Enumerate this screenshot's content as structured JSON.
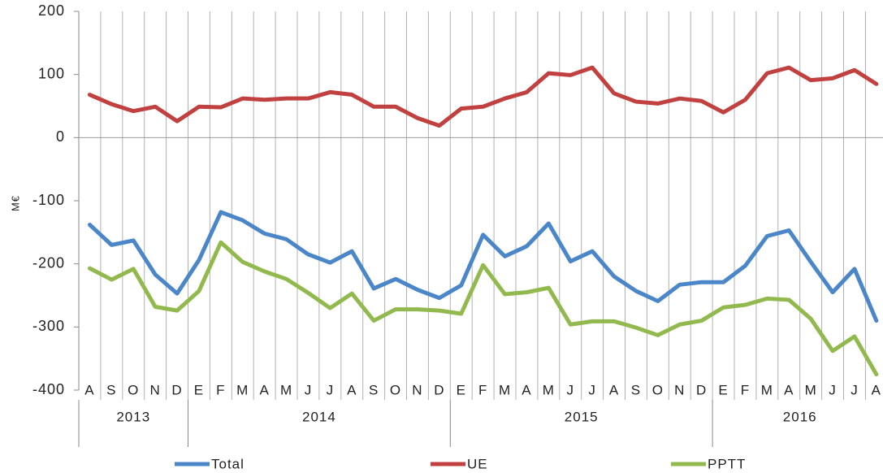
{
  "chart_data": {
    "type": "line",
    "y_label": "M€",
    "categories": [
      "A",
      "S",
      "O",
      "N",
      "D",
      "E",
      "F",
      "M",
      "A",
      "M",
      "J",
      "J",
      "A",
      "S",
      "O",
      "N",
      "D",
      "E",
      "F",
      "M",
      "A",
      "M",
      "J",
      "J",
      "A",
      "S",
      "O",
      "N",
      "D",
      "E",
      "F",
      "M",
      "A",
      "M",
      "J",
      "J",
      "A"
    ],
    "years": [
      "2013",
      "2014",
      "2015",
      "2016"
    ],
    "year_spans": [
      5,
      12,
      12,
      8
    ],
    "series": [
      {
        "name": "Total",
        "color": "#4a86c8",
        "values": [
          -138,
          -170,
          -163,
          -217,
          -247,
          -194,
          -118,
          -131,
          -152,
          -161,
          -185,
          -198,
          -180,
          -239,
          -224,
          -241,
          -254,
          -234,
          -154,
          -188,
          -172,
          -136,
          -196,
          -180,
          -220,
          -243,
          -259,
          -233,
          -229,
          -229,
          -203,
          -156,
          -147,
          -197,
          -245,
          -208,
          -290
        ]
      },
      {
        "name": "UE",
        "color": "#c0413f",
        "values": [
          68,
          53,
          42,
          49,
          26,
          49,
          48,
          62,
          60,
          62,
          62,
          72,
          68,
          49,
          49,
          31,
          19,
          46,
          49,
          62,
          72,
          102,
          99,
          111,
          70,
          57,
          54,
          62,
          58,
          40,
          60,
          102,
          111,
          91,
          94,
          107,
          85
        ]
      },
      {
        "name": "PPTT",
        "color": "#92b94e",
        "values": [
          -207,
          -225,
          -208,
          -268,
          -274,
          -243,
          -166,
          -197,
          -212,
          -224,
          -246,
          -270,
          -247,
          -290,
          -272,
          -272,
          -274,
          -279,
          -202,
          -248,
          -245,
          -238,
          -296,
          -291,
          -291,
          -301,
          -313,
          -296,
          -290,
          -269,
          -265,
          -255,
          -257,
          -287,
          -338,
          -315,
          -375
        ]
      }
    ],
    "ylim": [
      -400,
      200
    ],
    "yticks": [
      -400,
      -300,
      -200,
      -100,
      0,
      100,
      200
    ]
  }
}
